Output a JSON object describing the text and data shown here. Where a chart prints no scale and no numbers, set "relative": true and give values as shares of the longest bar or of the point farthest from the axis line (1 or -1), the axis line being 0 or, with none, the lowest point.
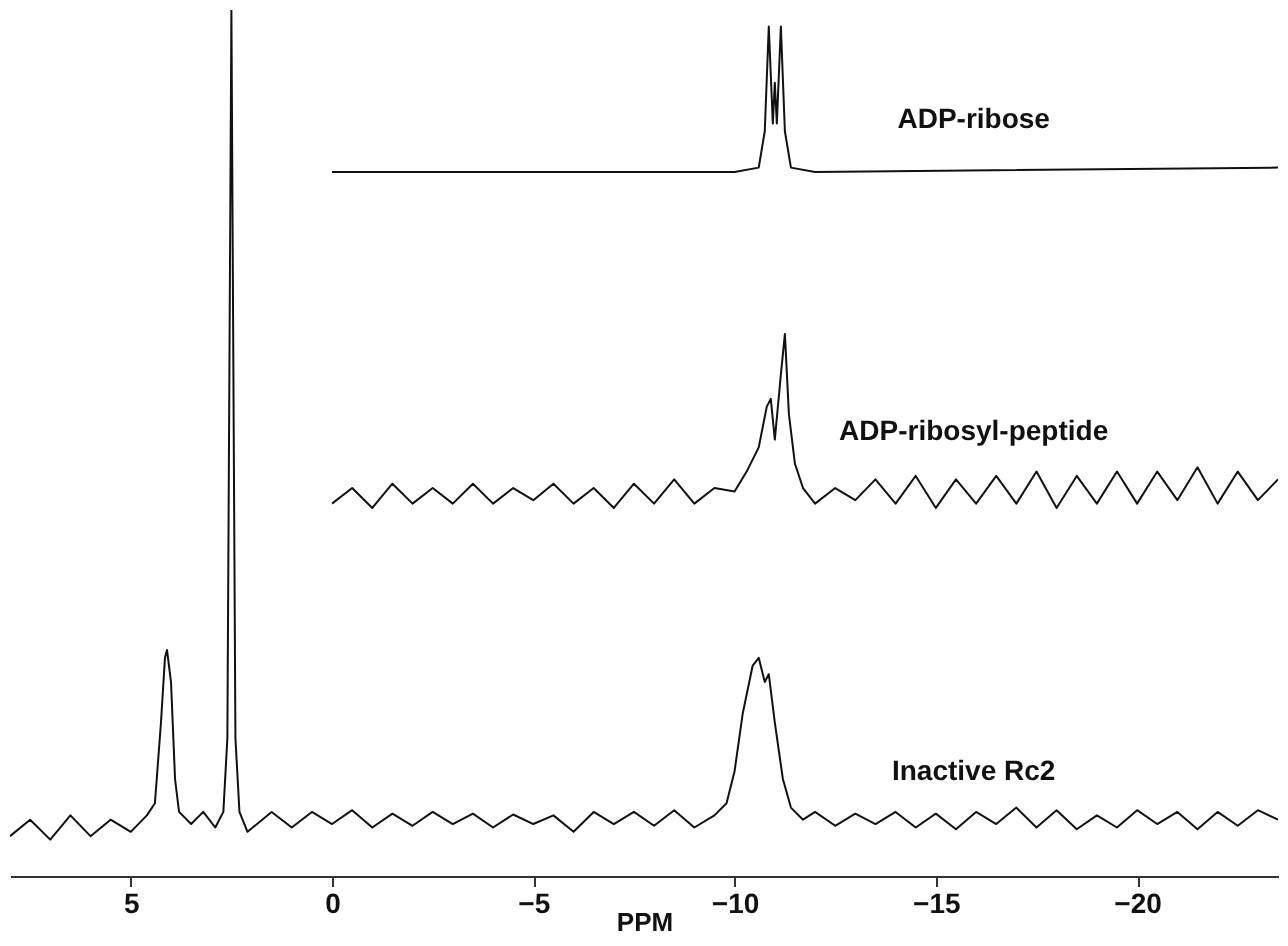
{
  "chart_data": {
    "type": "line",
    "xlabel": "PPM",
    "relative": true,
    "xlim": [
      8,
      -23.5
    ],
    "xticks": [
      5,
      0,
      -5,
      -10,
      -15,
      -20
    ],
    "grid": false,
    "marker": "none",
    "line_style": "solid",
    "series": [
      {
        "name": "ADP-ribose",
        "color": "#111111",
        "x": [
          0,
          -5,
          -10,
          -10.6,
          -10.75,
          -10.85,
          -10.95,
          -11.0,
          -11.05,
          -11.15,
          -11.25,
          -11.4,
          -12,
          -23.5
        ],
        "values": [
          0.813,
          0.813,
          0.813,
          0.818,
          0.86,
          0.981,
          0.869,
          0.916,
          0.869,
          0.981,
          0.86,
          0.818,
          0.813,
          0.818
        ]
      },
      {
        "name": "ADP-ribosyl-peptide",
        "color": "#111111",
        "x": [
          0,
          -0.5,
          -1,
          -1.5,
          -2,
          -2.5,
          -3,
          -3.5,
          -4,
          -4.5,
          -5,
          -5.5,
          -6,
          -6.5,
          -7,
          -7.5,
          -8,
          -8.5,
          -9,
          -9.5,
          -10,
          -10.3,
          -10.6,
          -10.8,
          -10.9,
          -11.0,
          -11.15,
          -11.25,
          -11.35,
          -11.5,
          -11.7,
          -12,
          -12.5,
          -13,
          -13.5,
          -14,
          -14.5,
          -15,
          -15.5,
          -16,
          -16.5,
          -17,
          -17.5,
          -18,
          -18.5,
          -19,
          -19.5,
          -20,
          -20.5,
          -21,
          -21.5,
          -22,
          -22.5,
          -23,
          -23.5
        ],
        "values": [
          0.43,
          0.448,
          0.425,
          0.453,
          0.43,
          0.448,
          0.43,
          0.453,
          0.43,
          0.448,
          0.434,
          0.453,
          0.43,
          0.448,
          0.425,
          0.453,
          0.43,
          0.458,
          0.43,
          0.448,
          0.444,
          0.467,
          0.495,
          0.542,
          0.551,
          0.504,
          0.579,
          0.626,
          0.533,
          0.476,
          0.448,
          0.43,
          0.448,
          0.434,
          0.458,
          0.43,
          0.462,
          0.425,
          0.458,
          0.43,
          0.462,
          0.43,
          0.467,
          0.425,
          0.462,
          0.43,
          0.467,
          0.43,
          0.467,
          0.434,
          0.472,
          0.43,
          0.467,
          0.434,
          0.458
        ]
      },
      {
        "name": "Inactive Rc2",
        "color": "#111111",
        "x": [
          8.0,
          7.5,
          7.0,
          6.5,
          6.0,
          5.5,
          5.0,
          4.6,
          4.4,
          4.25,
          4.15,
          4.1,
          4.0,
          3.9,
          3.8,
          3.5,
          3.2,
          2.9,
          2.7,
          2.6,
          2.5,
          2.4,
          2.3,
          2.1,
          1.5,
          1.0,
          0.5,
          0,
          -0.5,
          -1,
          -1.5,
          -2,
          -2.5,
          -3,
          -3.5,
          -4,
          -4.5,
          -5,
          -5.5,
          -6,
          -6.5,
          -7,
          -7.5,
          -8,
          -8.5,
          -9,
          -9.5,
          -9.8,
          -10.0,
          -10.2,
          -10.45,
          -10.6,
          -10.75,
          -10.85,
          -11.0,
          -11.2,
          -11.4,
          -11.7,
          -12,
          -12.5,
          -13,
          -13.5,
          -14,
          -14.5,
          -15,
          -15.5,
          -16,
          -16.5,
          -17,
          -17.5,
          -18,
          -18.5,
          -19,
          -19.5,
          -20,
          -20.5,
          -21,
          -21.5,
          -22,
          -22.5,
          -23,
          -23.5
        ],
        "values": [
          0.046,
          0.065,
          0.042,
          0.07,
          0.046,
          0.065,
          0.051,
          0.07,
          0.084,
          0.177,
          0.252,
          0.261,
          0.224,
          0.112,
          0.074,
          0.06,
          0.074,
          0.056,
          0.074,
          0.159,
          1.0,
          0.159,
          0.074,
          0.051,
          0.074,
          0.056,
          0.074,
          0.06,
          0.076,
          0.056,
          0.072,
          0.058,
          0.074,
          0.06,
          0.072,
          0.056,
          0.071,
          0.06,
          0.07,
          0.051,
          0.074,
          0.06,
          0.074,
          0.058,
          0.076,
          0.056,
          0.07,
          0.084,
          0.121,
          0.187,
          0.243,
          0.252,
          0.224,
          0.233,
          0.177,
          0.112,
          0.079,
          0.065,
          0.074,
          0.058,
          0.072,
          0.06,
          0.074,
          0.056,
          0.072,
          0.054,
          0.074,
          0.06,
          0.079,
          0.056,
          0.076,
          0.054,
          0.07,
          0.056,
          0.076,
          0.06,
          0.074,
          0.054,
          0.074,
          0.058,
          0.076,
          0.065
        ]
      }
    ]
  }
}
